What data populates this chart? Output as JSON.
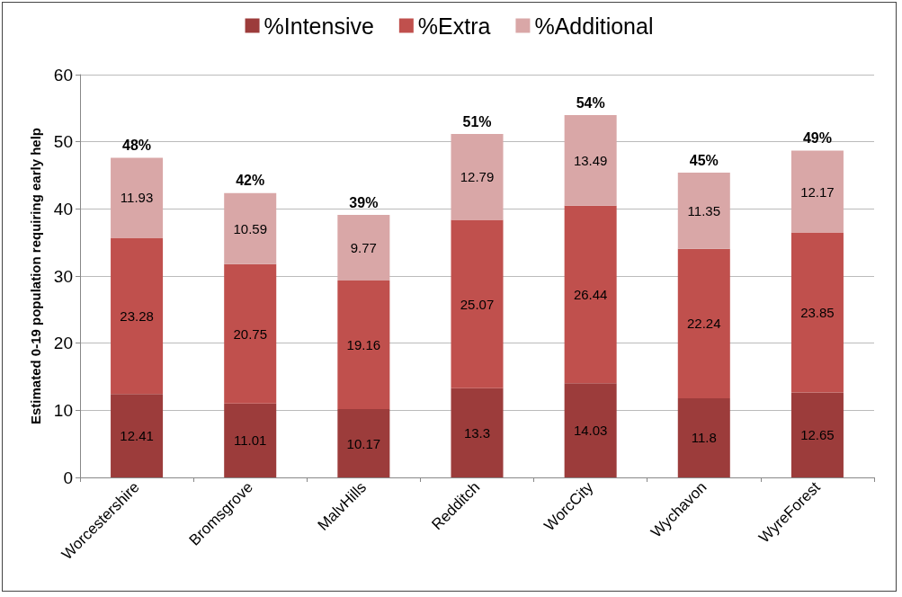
{
  "chart_data": {
    "type": "bar",
    "stacked": true,
    "ylabel": "Estimated 0-19 population requiring early help",
    "categories": [
      "Worcestershire",
      "Bromsgrove",
      "MalvHills",
      "Redditch",
      "WorcCity",
      "Wychavon",
      "WyreForest"
    ],
    "series": [
      {
        "name": "%Intensive",
        "color": "#9c3c3b",
        "values": [
          12.41,
          11.01,
          10.17,
          13.3,
          14.03,
          11.8,
          12.65
        ]
      },
      {
        "name": "%Extra",
        "color": "#c0504d",
        "values": [
          23.28,
          20.75,
          19.16,
          25.07,
          26.44,
          22.24,
          23.85
        ]
      },
      {
        "name": "%Additional",
        "color": "#d9a7a7",
        "values": [
          11.93,
          10.59,
          9.77,
          12.79,
          13.49,
          11.35,
          12.17
        ]
      }
    ],
    "data_labels": true,
    "totals": [
      "48%",
      "42%",
      "39%",
      "51%",
      "54%",
      "45%",
      "49%"
    ],
    "ylim": [
      0,
      60
    ],
    "yticks": [
      0,
      10,
      20,
      30,
      40,
      50,
      60
    ],
    "grid": "y",
    "legend": "top"
  }
}
